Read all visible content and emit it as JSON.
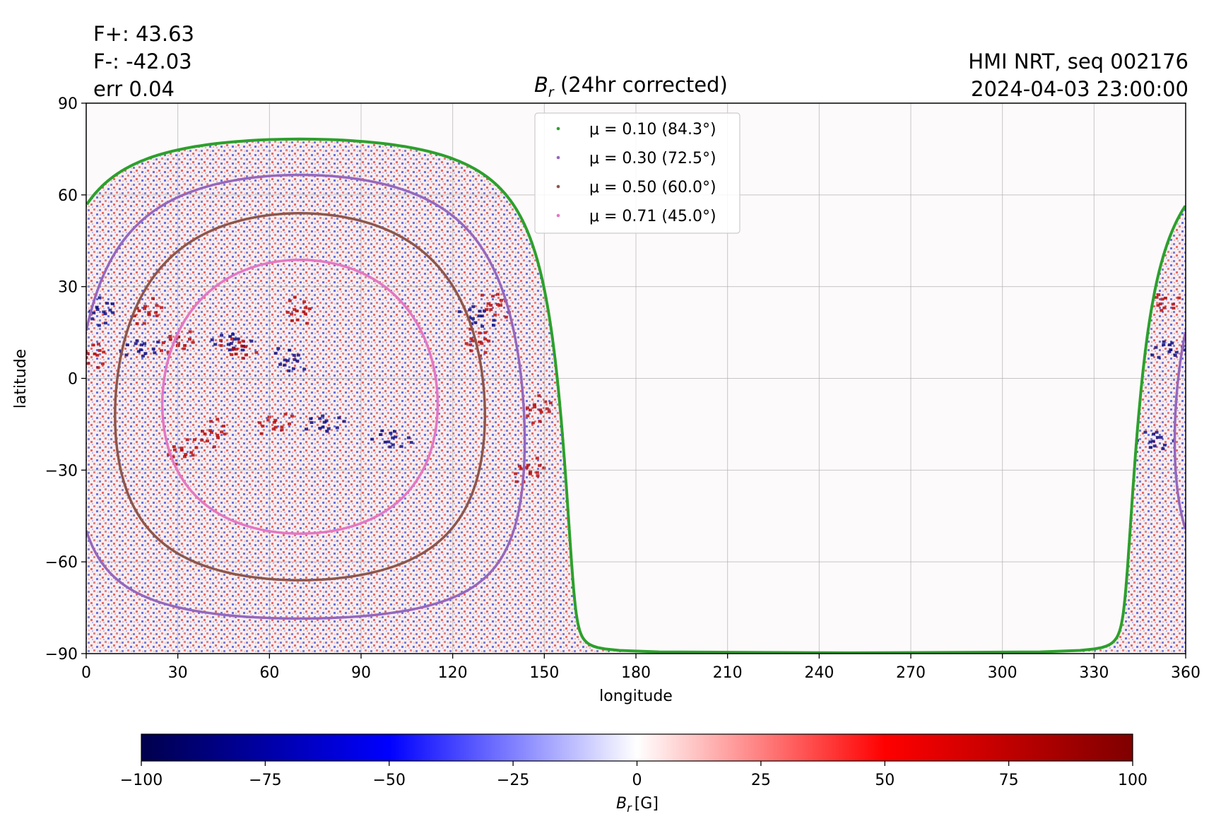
{
  "header": {
    "flux_pos": "F+: 43.63",
    "flux_neg": "F-: -42.03",
    "error": "err 0.04",
    "title_symbol": "B",
    "title_subscript": "r",
    "title_suffix": "(24hr corrected)",
    "source": "HMI NRT, seq 002176",
    "datetime": "2024-04-03 23:00:00"
  },
  "chart_data": {
    "type": "heatmap",
    "title": "B_r (24hr corrected)",
    "xlabel": "longitude",
    "ylabel": "latitude",
    "xlim": [
      0,
      360
    ],
    "ylim": [
      -90,
      90
    ],
    "x_ticks": [
      0,
      30,
      60,
      90,
      120,
      150,
      180,
      210,
      240,
      270,
      300,
      330,
      360
    ],
    "y_ticks": [
      90,
      60,
      30,
      0,
      -30,
      -60,
      -90
    ],
    "y_tick_labels": [
      "90",
      "60",
      "30",
      "0",
      "−30",
      "−60",
      "−90"
    ],
    "grid": true,
    "legend_position": "upper-center",
    "colormap": "seismic",
    "colorbar": {
      "label_symbol": "B",
      "label_subscript": "r",
      "label_unit": "[G]",
      "range": [
        -100,
        100
      ],
      "ticks": [
        -100,
        -75,
        -50,
        -25,
        0,
        25,
        50,
        75,
        100
      ],
      "tick_labels": [
        "−100",
        "−75",
        "−50",
        "−25",
        "0",
        "25",
        "50",
        "75",
        "100"
      ]
    },
    "disk_center": {
      "lon": 70,
      "lat": -6
    },
    "series": [
      {
        "name": "μ = 0.10 (84.3°)",
        "mu": 0.1,
        "angle_deg": 84.3,
        "color": "#2ca02c"
      },
      {
        "name": "μ = 0.30 (72.5°)",
        "mu": 0.3,
        "angle_deg": 72.5,
        "color": "#9467bd"
      },
      {
        "name": "μ = 0.50 (60.0°)",
        "mu": 0.5,
        "angle_deg": 60.0,
        "color": "#8c564b"
      },
      {
        "name": "μ = 0.71 (45.0°)",
        "mu": 0.71,
        "angle_deg": 45.0,
        "color": "#e377c2"
      }
    ],
    "active_regions": [
      {
        "lon": 2,
        "lat": 8,
        "sign": 1
      },
      {
        "lon": 5,
        "lat": 22,
        "sign": -1
      },
      {
        "lon": 20,
        "lat": 22,
        "sign": 1
      },
      {
        "lon": 30,
        "lat": 12,
        "sign": 1
      },
      {
        "lon": 18,
        "lat": 10,
        "sign": -1
      },
      {
        "lon": 48,
        "lat": 12,
        "sign": -1
      },
      {
        "lon": 50,
        "lat": 10,
        "sign": 1
      },
      {
        "lon": 67,
        "lat": 6,
        "sign": -1
      },
      {
        "lon": 70,
        "lat": 22,
        "sign": 1
      },
      {
        "lon": 42,
        "lat": -18,
        "sign": 1
      },
      {
        "lon": 32,
        "lat": -24,
        "sign": 1
      },
      {
        "lon": 62,
        "lat": -15,
        "sign": 1
      },
      {
        "lon": 78,
        "lat": -15,
        "sign": -1
      },
      {
        "lon": 100,
        "lat": -20,
        "sign": -1
      },
      {
        "lon": 128,
        "lat": 20,
        "sign": -1
      },
      {
        "lon": 134,
        "lat": 24,
        "sign": 1
      },
      {
        "lon": 128,
        "lat": 12,
        "sign": 1
      },
      {
        "lon": 148,
        "lat": -10,
        "sign": 1
      },
      {
        "lon": 145,
        "lat": -30,
        "sign": 1
      },
      {
        "lon": 355,
        "lat": 10,
        "sign": -1
      },
      {
        "lon": 352,
        "lat": 25,
        "sign": 1
      },
      {
        "lon": 350,
        "lat": -20,
        "sign": -1
      }
    ]
  }
}
